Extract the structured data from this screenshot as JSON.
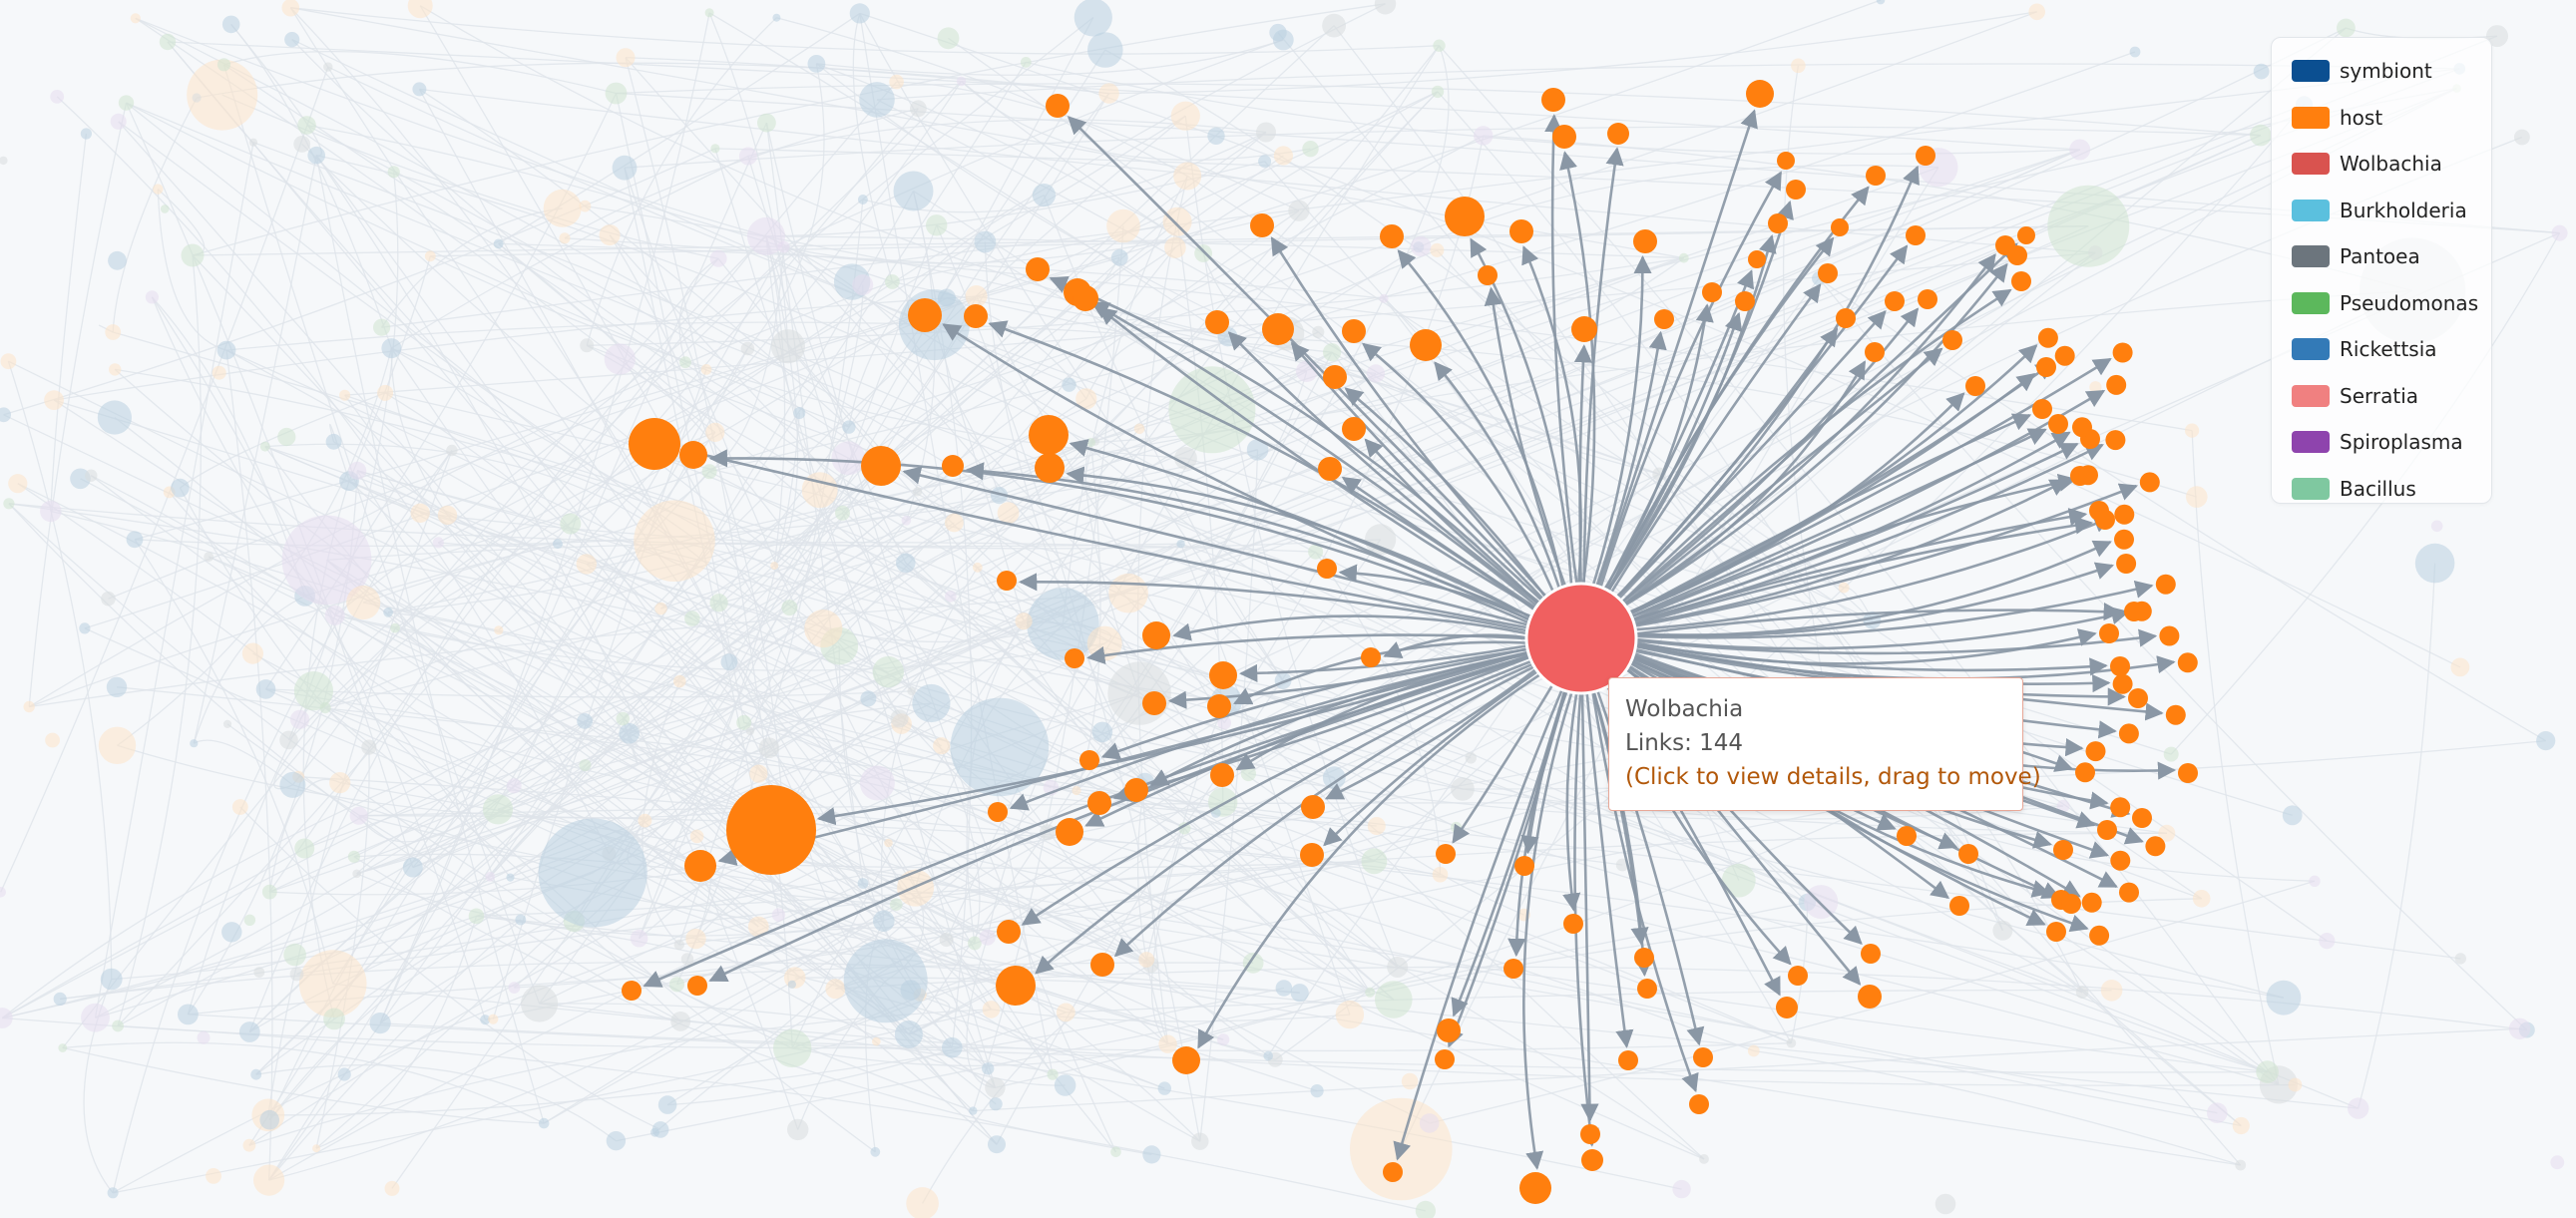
{
  "legend": {
    "items": [
      {
        "label": "symbiont",
        "color": "#0b4f91"
      },
      {
        "label": "host",
        "color": "#ff7f0e"
      },
      {
        "label": "Wolbachia",
        "color": "#d9534f"
      },
      {
        "label": "Burkholderia",
        "color": "#5bc0de"
      },
      {
        "label": "Pantoea",
        "color": "#6c757d"
      },
      {
        "label": "Pseudomonas",
        "color": "#5cb85c"
      },
      {
        "label": "Rickettsia",
        "color": "#337ab7"
      },
      {
        "label": "Serratia",
        "color": "#f08080"
      },
      {
        "label": "Spiroplasma",
        "color": "#8e44ad"
      },
      {
        "label": "Bacillus",
        "color": "#7fc8a0"
      }
    ]
  },
  "tooltip": {
    "name": "Wolbachia",
    "links": "Links: 144",
    "hint": "(Click to view details, drag to move)"
  },
  "graph": {
    "focus_node": "Wolbachia",
    "focus_color": "#f06060",
    "host_color": "#ff7f0e",
    "edge_color": "#8a97a5",
    "faded_symbiont_color": "#b9cfe0",
    "faded_host_color": "#fde3c8",
    "faded_edge_color": "#dfe4ea"
  }
}
